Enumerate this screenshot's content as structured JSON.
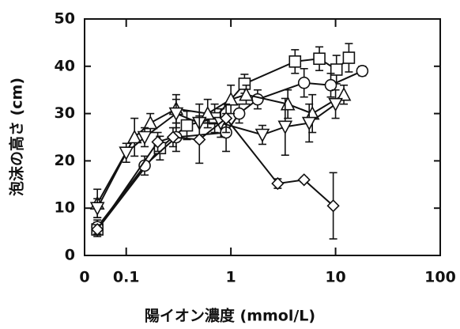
{
  "chart_data": {
    "type": "scatter-line",
    "x_label": "陽イオン濃度 (mmol/L)",
    "y_label": "泡沫の高さ (cm)",
    "xscale": "log",
    "xlim": [
      0.04,
      100
    ],
    "xticks": [
      {
        "value": 0.04,
        "label": "0"
      },
      0.1,
      1,
      10,
      100
    ],
    "ylim": [
      0,
      50
    ],
    "yticks": [
      0,
      10,
      20,
      30,
      40,
      50
    ],
    "series": [
      {
        "marker": "square",
        "color": "#111111",
        "x": [
          0.053,
          0.21,
          0.38,
          0.7,
          1.35,
          4.1,
          7.0,
          10.2,
          13.4
        ],
        "values": [
          5.5,
          22.7,
          27.5,
          29,
          36.3,
          41,
          41.6,
          39.3,
          41.8
        ],
        "errors": [
          1.5,
          2.5,
          3,
          3,
          2,
          2.5,
          2.5,
          3,
          3
        ]
      },
      {
        "marker": "circle",
        "color": "#111111",
        "x": [
          0.053,
          0.15,
          0.3,
          0.9,
          1.2,
          1.8,
          5,
          9,
          18
        ],
        "values": [
          6,
          19,
          25,
          26,
          30,
          33,
          36.5,
          36,
          39
        ],
        "errors": [
          1.5,
          2,
          3,
          4,
          2,
          2,
          3,
          2.5,
          1
        ]
      },
      {
        "marker": "triangle-up",
        "color": "#111111",
        "x": [
          0.053,
          0.12,
          0.17,
          0.3,
          0.6,
          1.0,
          1.4,
          3.5,
          6,
          12
        ],
        "values": [
          11,
          25,
          28,
          31,
          30,
          33,
          34,
          32,
          30,
          34
        ],
        "errors": [
          3,
          4,
          2,
          3,
          3,
          3,
          2,
          3,
          4,
          2
        ]
      },
      {
        "marker": "triangle-down",
        "color": "#111111",
        "x": [
          0.053,
          0.1,
          0.15,
          0.3,
          0.5,
          0.8,
          2.0,
          3.3,
          5.6,
          10
        ],
        "values": [
          10,
          21.7,
          25,
          30,
          28,
          28,
          25.5,
          27.2,
          28,
          32
        ],
        "errors": [
          2,
          2,
          2,
          3,
          4,
          3,
          2,
          6,
          4,
          3
        ]
      },
      {
        "marker": "diamond",
        "color": "#111111",
        "x": [
          0.053,
          0.2,
          0.28,
          0.5,
          0.9,
          2.8,
          5,
          9.5
        ],
        "values": [
          5.5,
          24,
          25,
          24.5,
          29,
          15.2,
          16,
          10.5
        ],
        "errors": [
          1,
          2,
          2,
          5,
          3,
          1,
          0.5,
          7
        ]
      }
    ]
  }
}
